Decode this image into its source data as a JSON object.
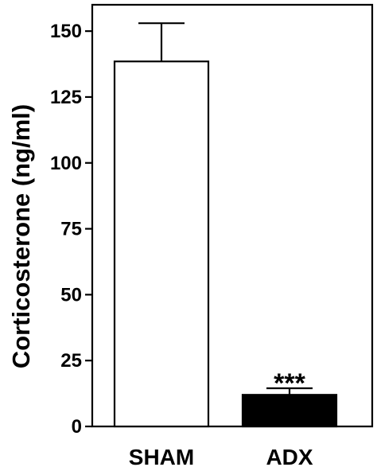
{
  "chart_data": {
    "type": "bar",
    "ylabel": "Corticosterone (ng/ml)",
    "ylim": [
      0,
      160
    ],
    "yticks": [
      0,
      25,
      50,
      75,
      100,
      125,
      150
    ],
    "categories": [
      "SHAM",
      "ADX"
    ],
    "values": [
      138.5,
      12
    ],
    "errors": [
      14.5,
      2.5
    ],
    "bar_colors": [
      "#ffffff",
      "#000000"
    ],
    "annotations": [
      {
        "category": "ADX",
        "text": "***"
      }
    ],
    "grid": false,
    "legend": "none"
  }
}
